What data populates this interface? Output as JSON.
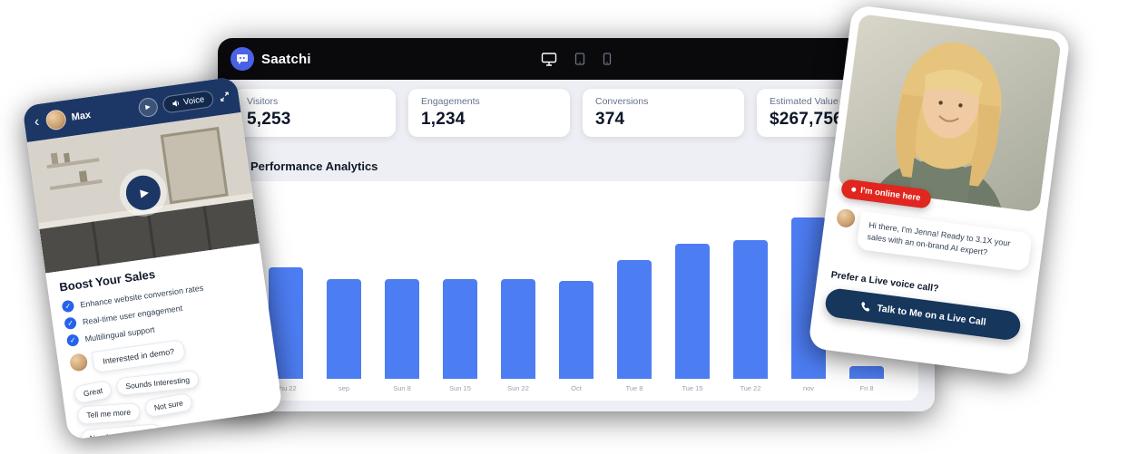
{
  "dashboard": {
    "brand": "Saatchi",
    "header": {
      "settings_label": "Settings"
    },
    "stats": [
      {
        "label": "Visitors",
        "value": "5,253"
      },
      {
        "label": "Engagements",
        "value": "1,234"
      },
      {
        "label": "Conversions",
        "value": "374"
      },
      {
        "label": "Estimated Value",
        "value": "$267,756"
      }
    ],
    "section_title": "Performance Analytics"
  },
  "chart_data": {
    "type": "bar",
    "title": "Performance Analytics",
    "categories": [
      "Thu 22",
      "sep",
      "Sun 8",
      "Sun 15",
      "Sun 22",
      "Oct",
      "Tue 8",
      "Tue 15",
      "Tue 22",
      "nov",
      "Fri 8"
    ],
    "values": [
      63,
      56,
      56,
      56,
      56,
      55,
      67,
      76,
      78,
      91,
      7
    ],
    "ylim": [
      0,
      100
    ],
    "xlabel": "",
    "ylabel": "",
    "grid": false,
    "legend": false,
    "bar_color": "#4d7df2"
  },
  "left_widget": {
    "agent_name": "Max",
    "voice_label": "Voice",
    "heading": "Boost Your Sales",
    "features": [
      "Enhance website conversion rates",
      "Real-time user engagement",
      "Multilingual support"
    ],
    "agent_message": "Interested in demo?",
    "quick_replies": [
      "Great",
      "Sounds Interesting",
      "Tell me more",
      "Not sure",
      "Need more details"
    ]
  },
  "right_widget": {
    "online_badge": "I'm online here",
    "agent_message": "Hi there, I'm Jenna! Ready to 3.1X your sales with an on-brand AI expert?",
    "voice_call_prompt": "Prefer a Live voice call?",
    "call_button_label": "Talk to Me on a Live Call"
  },
  "colors": {
    "brand_blue": "#4a63e7",
    "bar_blue": "#4d7df2",
    "navy": "#1c3765",
    "badge_red": "#e0261f"
  }
}
